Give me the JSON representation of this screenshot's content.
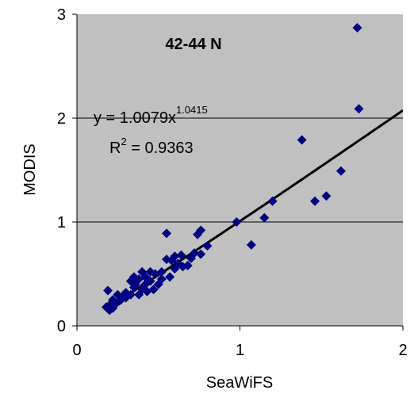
{
  "chart_data": {
    "type": "scatter",
    "title": "42-44 N",
    "xlabel": "SeaWiFS",
    "ylabel": "MODIS",
    "xlim": [
      0,
      2
    ],
    "xticks": [
      0,
      1,
      2
    ],
    "ylim": [
      0,
      3
    ],
    "yticks": [
      0,
      1,
      2,
      3
    ],
    "grid": true,
    "background": "#c0c0c0",
    "color": "#000080",
    "trendline": {
      "equation": "y = 1.0079x",
      "exponent_label": "1.0415",
      "r_base": "R",
      "r_sup": "2",
      "r_value": " = 0.9363",
      "coefficient": 1.0079,
      "exponent": 1.0415,
      "xrange": [
        0.18,
        2
      ],
      "color": "#000000"
    },
    "x": [
      1.72,
      1.73,
      1.38,
      1.62,
      1.53,
      1.46,
      1.2,
      1.15,
      0.98,
      1.07,
      0.55,
      0.76,
      0.74,
      0.8,
      0.72,
      0.76,
      0.64,
      0.6,
      0.58,
      0.55,
      0.62,
      0.65,
      0.6,
      0.57,
      0.52,
      0.48,
      0.45,
      0.4,
      0.42,
      0.38,
      0.35,
      0.33,
      0.45,
      0.47,
      0.43,
      0.4,
      0.38,
      0.35,
      0.3,
      0.28,
      0.25,
      0.22,
      0.2,
      0.19,
      0.18,
      0.2,
      0.23,
      0.26,
      0.3,
      0.33,
      0.5,
      0.52,
      0.68,
      0.7,
      0.36,
      0.42,
      0.27,
      0.22
    ],
    "y": [
      2.87,
      2.09,
      1.79,
      1.49,
      1.25,
      1.2,
      1.2,
      1.04,
      1.0,
      0.78,
      0.89,
      0.92,
      0.88,
      0.77,
      0.7,
      0.69,
      0.68,
      0.67,
      0.63,
      0.64,
      0.6,
      0.57,
      0.55,
      0.47,
      0.52,
      0.5,
      0.52,
      0.52,
      0.47,
      0.45,
      0.47,
      0.43,
      0.43,
      0.35,
      0.33,
      0.35,
      0.3,
      0.37,
      0.32,
      0.28,
      0.3,
      0.25,
      0.2,
      0.34,
      0.18,
      0.15,
      0.2,
      0.24,
      0.27,
      0.3,
      0.4,
      0.45,
      0.58,
      0.65,
      0.4,
      0.4,
      0.25,
      0.17
    ]
  }
}
